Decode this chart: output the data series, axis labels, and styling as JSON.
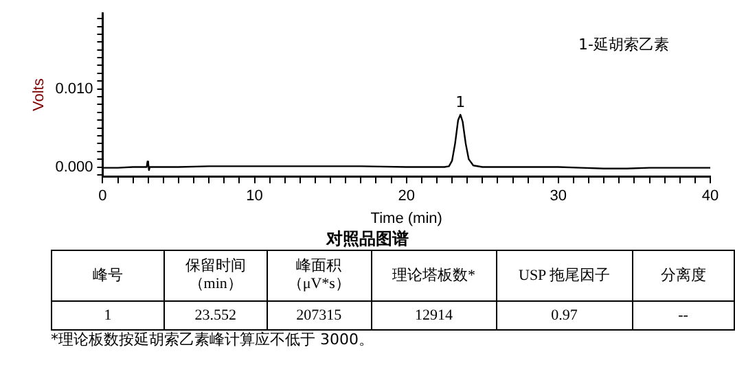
{
  "chart_data": {
    "type": "line",
    "title": "对照品图谱",
    "xlabel": "Time (min)",
    "ylabel": "Volts",
    "x": [
      0,
      1,
      2,
      2.9,
      2.95,
      3.0,
      3.05,
      3.1,
      5,
      7,
      8,
      10,
      13,
      15,
      17,
      20,
      22.5,
      22.8,
      23.0,
      23.2,
      23.4,
      23.55,
      23.7,
      23.9,
      24.1,
      24.4,
      25,
      27,
      30,
      31.5,
      33,
      34.5,
      36,
      40
    ],
    "series": [
      {
        "color": "#000000",
        "values": [
          -0.0001,
          -0.0001,
          0,
          0,
          0.0007,
          0.0005,
          -0.0004,
          0,
          0,
          0.0001,
          0.0001,
          0.0001,
          0.0001,
          0.0001,
          0.0001,
          0,
          0,
          0.0001,
          0.0008,
          0.003,
          0.006,
          0.0067,
          0.0058,
          0.003,
          0.001,
          0.0002,
          0,
          0,
          0,
          -0.0001,
          -0.0002,
          -0.0002,
          -0.0001,
          -0.0001
        ]
      }
    ],
    "xlim": [
      0,
      40
    ],
    "ylim": [
      -0.0012,
      0.0197
    ],
    "xticks": [
      0,
      {
        "value": 1,
        "label": null
      },
      {
        "value": 2,
        "label": null
      },
      {
        "value": 3,
        "label": null
      },
      {
        "value": 4,
        "label": null
      },
      {
        "value": 5,
        "label": null
      },
      {
        "value": 6,
        "label": null
      },
      {
        "value": 7,
        "label": null
      },
      {
        "value": 8,
        "label": null
      },
      {
        "value": 9,
        "label": null
      },
      10,
      {
        "value": 11,
        "label": null
      },
      {
        "value": 12,
        "label": null
      },
      {
        "value": 13,
        "label": null
      },
      {
        "value": 14,
        "label": null
      },
      {
        "value": 15,
        "label": null
      },
      {
        "value": 16,
        "label": null
      },
      {
        "value": 17,
        "label": null
      },
      {
        "value": 18,
        "label": null
      },
      {
        "value": 19,
        "label": null
      },
      20,
      {
        "value": 21,
        "label": null
      },
      {
        "value": 22,
        "label": null
      },
      {
        "value": 23,
        "label": null
      },
      {
        "value": 24,
        "label": null
      },
      {
        "value": 25,
        "label": null
      },
      {
        "value": 26,
        "label": null
      },
      {
        "value": 27,
        "label": null
      },
      {
        "value": 28,
        "label": null
      },
      {
        "value": 29,
        "label": null
      },
      30,
      {
        "value": 31,
        "label": null
      },
      {
        "value": 32,
        "label": null
      },
      {
        "value": 33,
        "label": null
      },
      {
        "value": 34,
        "label": null
      },
      {
        "value": 35,
        "label": null
      },
      {
        "value": 36,
        "label": null
      },
      {
        "value": 37,
        "label": null
      },
      {
        "value": 38,
        "label": null
      },
      {
        "value": 39,
        "label": null
      },
      40
    ],
    "yticks": [
      {
        "value": -0.001,
        "label": null
      },
      {
        "value": 0,
        "label": "0.000"
      },
      {
        "value": 0.001,
        "label": null
      },
      {
        "value": 0.002,
        "label": null
      },
      {
        "value": 0.003,
        "label": null
      },
      {
        "value": 0.004,
        "label": null
      },
      {
        "value": 0.005,
        "label": null
      },
      {
        "value": 0.006,
        "label": null
      },
      {
        "value": 0.007,
        "label": null
      },
      {
        "value": 0.008,
        "label": null
      },
      {
        "value": 0.009,
        "label": null
      },
      {
        "value": 0.01,
        "label": "0.010"
      },
      {
        "value": 0.011,
        "label": null
      },
      {
        "value": 0.012,
        "label": null
      },
      {
        "value": 0.013,
        "label": null
      },
      {
        "value": 0.014,
        "label": null
      },
      {
        "value": 0.015,
        "label": null
      },
      {
        "value": 0.016,
        "label": null
      },
      {
        "value": 0.017,
        "label": null
      },
      {
        "value": 0.018,
        "label": null
      },
      {
        "value": 0.019,
        "label": null
      }
    ],
    "grid": false,
    "legend": false,
    "marker": "none",
    "line_style": "solid",
    "annotations": [
      "1-延胡索乙素",
      {
        "text": "1",
        "x": 23.55,
        "y": 0.0067
      },
      "峰号",
      "保留时间（min）",
      "峰面积（μV*s）",
      "理论塔板数*",
      "USP 拖尾因子",
      "分离度",
      "1",
      "23.552",
      "207315",
      "12914",
      "0.97",
      "--",
      "*理论板数按延胡索乙素峰计算应不低于 3000。"
    ]
  }
}
